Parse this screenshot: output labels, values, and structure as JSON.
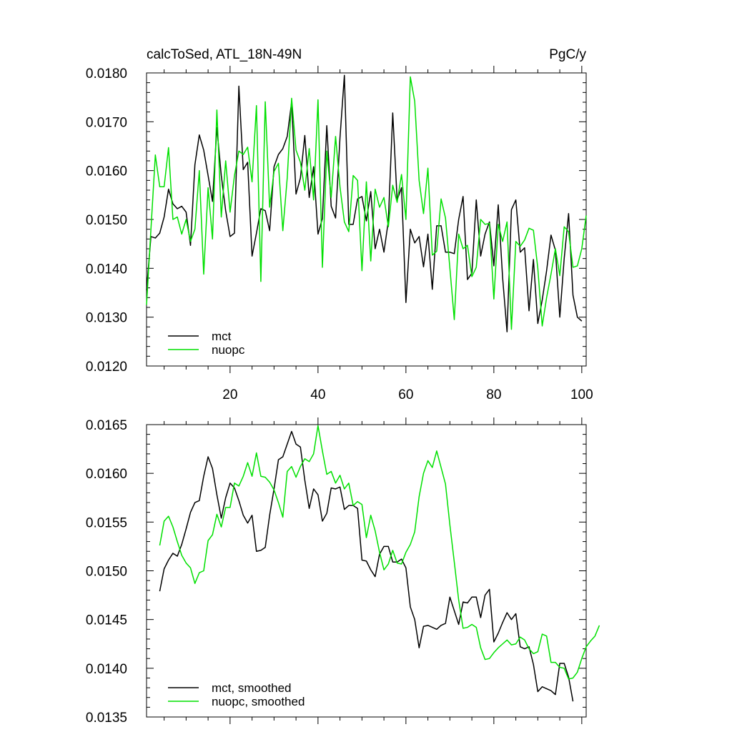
{
  "page": {
    "title_left": "calcToSed, ATL_18N-49N",
    "title_right": "PgC/y"
  },
  "colors": {
    "mct": "#000000",
    "nuopc": "#00e000",
    "axis": "#000000",
    "background": "#ffffff"
  },
  "chart_data": [
    {
      "type": "line",
      "title": "",
      "xlabel": "",
      "ylabel": "",
      "xlim": [
        1,
        101
      ],
      "ylim": [
        0.012,
        0.018
      ],
      "grid": false,
      "legend_position": "bottom-left",
      "x_tick_labels": [
        "20",
        "40",
        "60",
        "80",
        "100"
      ],
      "y_tick_labels": [
        "0.0120",
        "0.0130",
        "0.0140",
        "0.0150",
        "0.0160",
        "0.0170",
        "0.0180"
      ],
      "x_start": 1,
      "series": [
        {
          "name": "mct",
          "color": "#000000",
          "values": [
            0.01355,
            0.01465,
            0.01462,
            0.01472,
            0.01505,
            0.01562,
            0.01532,
            0.01522,
            0.01527,
            0.01515,
            0.01447,
            0.01612,
            0.01673,
            0.01642,
            0.0159,
            0.01537,
            0.01688,
            0.0159,
            0.01518,
            0.01465,
            0.01472,
            0.01773,
            0.01602,
            0.01617,
            0.01425,
            0.01472,
            0.01522,
            0.01518,
            0.01477,
            0.01608,
            0.01633,
            0.01645,
            0.0167,
            0.0174,
            0.01552,
            0.01585,
            0.01672,
            0.01545,
            0.01608,
            0.0147,
            0.01502,
            0.01692,
            0.01527,
            0.01503,
            0.01667,
            0.01795,
            0.0149,
            0.0149,
            0.01542,
            0.01547,
            0.01497,
            0.01557,
            0.0144,
            0.0148,
            0.01433,
            0.01497,
            0.01718,
            0.0154,
            0.01565,
            0.0133,
            0.0148,
            0.01452,
            0.01465,
            0.01403,
            0.0147,
            0.01357,
            0.01487,
            0.01487,
            0.01433,
            0.01433,
            0.0143,
            0.015,
            0.01547,
            0.01377,
            0.0139,
            0.0154,
            0.01425,
            0.0147,
            0.01495,
            0.01405,
            0.0153,
            0.0138,
            0.0127,
            0.0152,
            0.0154,
            0.01433,
            0.01442,
            0.01313,
            0.01418,
            0.01287,
            0.01335,
            0.01395,
            0.01468,
            0.01437,
            0.013,
            0.0142,
            0.01512,
            0.01345,
            0.013,
            0.01292
          ]
        },
        {
          "name": "nuopc",
          "color": "#00e000",
          "values": [
            0.01325,
            0.0148,
            0.01632,
            0.01567,
            0.01567,
            0.01647,
            0.015,
            0.01505,
            0.0147,
            0.015,
            0.01455,
            0.0148,
            0.016,
            0.01388,
            0.01565,
            0.0146,
            0.01724,
            0.01505,
            0.0162,
            0.01515,
            0.0159,
            0.0164,
            0.01633,
            0.01648,
            0.01577,
            0.01733,
            0.01373,
            0.01741,
            0.01525,
            0.01598,
            0.01615,
            0.01477,
            0.01585,
            0.01748,
            0.01642,
            0.01617,
            0.0156,
            0.01645,
            0.0154,
            0.01745,
            0.01402,
            0.0164,
            0.01545,
            0.0167,
            0.01567,
            0.01495,
            0.01475,
            0.0159,
            0.0158,
            0.01395,
            0.01577,
            0.01415,
            0.01562,
            0.01525,
            0.01545,
            0.01485,
            0.0157,
            0.01535,
            0.01592,
            0.015,
            0.01792,
            0.01742,
            0.0158,
            0.01512,
            0.01605,
            0.01427,
            0.01435,
            0.01542,
            0.01503,
            0.014,
            0.01295,
            0.0147,
            0.0144,
            0.01447,
            0.01383,
            0.01402,
            0.015,
            0.0149,
            0.01492,
            0.01337,
            0.0149,
            0.01455,
            0.01495,
            0.01275,
            0.01455,
            0.01445,
            0.01458,
            0.01482,
            0.01478,
            0.014,
            0.01282,
            0.0134,
            0.01388,
            0.0144,
            0.01385,
            0.01485,
            0.01475,
            0.01402,
            0.01405,
            0.0144,
            0.01508
          ]
        }
      ]
    },
    {
      "type": "line",
      "title": "",
      "xlabel": "",
      "ylabel": "",
      "xlim": [
        1,
        101
      ],
      "ylim": [
        0.0135,
        0.0165
      ],
      "grid": false,
      "legend_position": "bottom-left",
      "y_tick_labels": [
        "0.0135",
        "0.0140",
        "0.0145",
        "0.0150",
        "0.0155",
        "0.0160",
        "0.0165"
      ],
      "x_start": 4,
      "series": [
        {
          "name": "mct, smoothed",
          "color": "#000000",
          "values": [
            0.01479,
            0.01502,
            0.01511,
            0.01518,
            0.01515,
            0.01527,
            0.01543,
            0.0156,
            0.0157,
            0.01572,
            0.01597,
            0.01617,
            0.01605,
            0.01578,
            0.01554,
            0.01575,
            0.0159,
            0.01585,
            0.01572,
            0.01557,
            0.01549,
            0.01557,
            0.0152,
            0.01521,
            0.01524,
            0.01557,
            0.01584,
            0.01614,
            0.01617,
            0.0163,
            0.01643,
            0.0163,
            0.01627,
            0.01593,
            0.01564,
            0.01584,
            0.01578,
            0.01551,
            0.01559,
            0.01585,
            0.01584,
            0.01586,
            0.01563,
            0.01567,
            0.01567,
            0.01564,
            0.01511,
            0.0151,
            0.01501,
            0.01494,
            0.01517,
            0.01525,
            0.01525,
            0.01509,
            0.01509,
            0.01512,
            0.01503,
            0.01463,
            0.0145,
            0.01421,
            0.01443,
            0.01444,
            0.01442,
            0.0144,
            0.01444,
            0.01446,
            0.01473,
            0.01459,
            0.01445,
            0.01468,
            0.01467,
            0.01473,
            0.01473,
            0.01452,
            0.01475,
            0.01481,
            0.01427,
            0.01436,
            0.01447,
            0.01457,
            0.0145,
            0.01456,
            0.01422,
            0.0142,
            0.01422,
            0.01404,
            0.01376,
            0.01381,
            0.01379,
            0.01377,
            0.01373,
            0.01405,
            0.01405,
            0.01391,
            0.01366
          ]
        },
        {
          "name": "nuopc, smoothed",
          "color": "#00e000",
          "values": [
            0.01526,
            0.01551,
            0.01556,
            0.01545,
            0.0153,
            0.01516,
            0.01508,
            0.01503,
            0.01487,
            0.01498,
            0.015,
            0.01531,
            0.01537,
            0.01558,
            0.01545,
            0.01565,
            0.01565,
            0.0159,
            0.01587,
            0.01597,
            0.01611,
            0.01597,
            0.01621,
            0.01597,
            0.01596,
            0.01591,
            0.01583,
            0.0157,
            0.01555,
            0.01602,
            0.01607,
            0.01596,
            0.01607,
            0.01615,
            0.01612,
            0.0162,
            0.01649,
            0.01623,
            0.01599,
            0.01602,
            0.0159,
            0.01598,
            0.01584,
            0.0159,
            0.01567,
            0.01571,
            0.01568,
            0.01534,
            0.01557,
            0.01541,
            0.01519,
            0.01501,
            0.01507,
            0.01521,
            0.01508,
            0.01507,
            0.01519,
            0.01527,
            0.0154,
            0.01576,
            0.016,
            0.01613,
            0.01606,
            0.01623,
            0.01606,
            0.01589,
            0.01547,
            0.01509,
            0.0147,
            0.01441,
            0.01442,
            0.01445,
            0.01442,
            0.01421,
            0.01409,
            0.0141,
            0.01416,
            0.01421,
            0.01425,
            0.01429,
            0.01424,
            0.01425,
            0.01432,
            0.01429,
            0.0142,
            0.01415,
            0.01417,
            0.01435,
            0.01433,
            0.01406,
            0.01406,
            0.01401,
            0.014,
            0.01389,
            0.0139,
            0.01396,
            0.0141,
            0.01422,
            0.01428,
            0.01433,
            0.01444
          ]
        }
      ]
    }
  ]
}
